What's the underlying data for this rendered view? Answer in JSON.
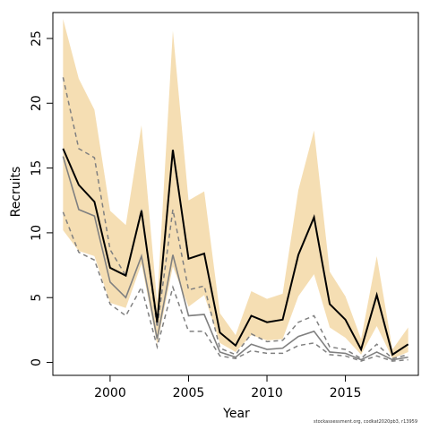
{
  "chart_data": {
    "type": "line",
    "xlabel": "Year",
    "ylabel": "Recruits",
    "xlim": [
      1996.35,
      2019.65
    ],
    "ylim": [
      -1.0,
      27.0
    ],
    "xticks": [
      2000,
      2005,
      2010,
      2015
    ],
    "yticks": [
      0,
      5,
      10,
      15,
      20,
      25
    ],
    "grid": false,
    "colors": {
      "band": "#f5deb3",
      "main": "#000000",
      "gray": "#808080",
      "dashed": "#808080"
    },
    "years": [
      1997,
      1998,
      1999,
      2000,
      2001,
      2002,
      2003,
      2004,
      2005,
      2006,
      2007,
      2008,
      2009,
      2010,
      2011,
      2012,
      2013,
      2014,
      2015,
      2016,
      2017,
      2018,
      2019
    ],
    "band_upper": [
      26.5,
      21.9,
      19.5,
      11.7,
      10.6,
      18.3,
      4.6,
      25.6,
      12.5,
      13.2,
      3.8,
      2.1,
      5.5,
      4.9,
      5.3,
      13.3,
      17.9,
      7.0,
      5.1,
      1.8,
      8.2,
      1.0,
      2.7
    ],
    "band_lower": [
      10.2,
      8.6,
      8.2,
      4.6,
      4.2,
      7.6,
      1.4,
      7.4,
      4.3,
      5.2,
      1.5,
      0.8,
      2.1,
      1.7,
      1.8,
      5.1,
      6.8,
      2.7,
      1.9,
      0.6,
      2.8,
      0.3,
      0.8
    ],
    "main": [
      16.5,
      13.7,
      12.4,
      7.3,
      6.7,
      11.7,
      3.1,
      16.4,
      8.0,
      8.4,
      2.3,
      1.3,
      3.6,
      3.1,
      3.3,
      8.3,
      11.2,
      4.5,
      3.3,
      1.0,
      5.2,
      0.6,
      1.4
    ],
    "gray": [
      15.9,
      11.8,
      11.3,
      6.2,
      5.0,
      8.2,
      1.8,
      8.3,
      3.6,
      3.7,
      0.8,
      0.4,
      1.4,
      1.0,
      1.1,
      2.0,
      2.4,
      0.8,
      0.7,
      0.2,
      0.8,
      0.2,
      0.4
    ],
    "dashed_upper": [
      22.0,
      16.5,
      15.8,
      8.7,
      6.7,
      11.8,
      2.7,
      11.8,
      5.6,
      5.9,
      1.1,
      0.6,
      2.2,
      1.6,
      1.7,
      3.1,
      3.6,
      1.2,
      1.0,
      0.3,
      1.4,
      0.3,
      0.6
    ],
    "dashed_lower": [
      11.6,
      8.5,
      7.9,
      4.5,
      3.6,
      5.8,
      1.2,
      5.8,
      2.4,
      2.4,
      0.5,
      0.3,
      0.9,
      0.7,
      0.7,
      1.3,
      1.5,
      0.6,
      0.5,
      0.1,
      0.5,
      0.1,
      0.2
    ]
  },
  "footnote": "stockassessment.org, codkat2020pb3, r13959"
}
